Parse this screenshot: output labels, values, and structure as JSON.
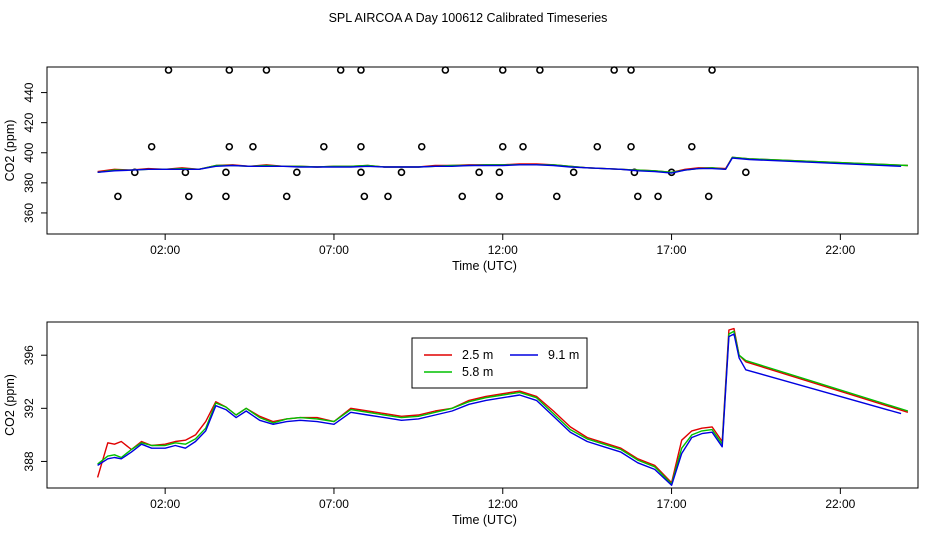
{
  "title": "SPL AIRCOA A  Day 100612  Calibrated Timeseries",
  "colors": {
    "red": "#e00000",
    "green": "#00c000",
    "blue": "#0000e0",
    "axis": "#000000"
  },
  "chart_data": [
    {
      "type": "scatter+line",
      "name": "top",
      "xlabel": "Time (UTC)",
      "ylabel": "CO2 (ppm)",
      "xlim": [
        -1.5,
        24.3
      ],
      "ylim": [
        346,
        457
      ],
      "xticks": [
        2,
        7,
        12,
        17,
        22
      ],
      "xtick_labels": [
        "02:00",
        "07:00",
        "12:00",
        "17:00",
        "22:00"
      ],
      "yticks": [
        360,
        380,
        400,
        420,
        440
      ],
      "ytick_labels": [
        "360",
        "380",
        "400",
        "420",
        "440"
      ],
      "points": [
        [
          2.1,
          455
        ],
        [
          3.9,
          455
        ],
        [
          5.0,
          455
        ],
        [
          7.2,
          455
        ],
        [
          7.8,
          455
        ],
        [
          10.3,
          455
        ],
        [
          12.0,
          455
        ],
        [
          13.1,
          455
        ],
        [
          15.3,
          455
        ],
        [
          15.8,
          455
        ],
        [
          18.2,
          455
        ],
        [
          1.6,
          404
        ],
        [
          3.9,
          404
        ],
        [
          4.6,
          404
        ],
        [
          6.7,
          404
        ],
        [
          7.8,
          404
        ],
        [
          9.6,
          404
        ],
        [
          12.0,
          404
        ],
        [
          12.6,
          404
        ],
        [
          14.8,
          404
        ],
        [
          15.8,
          404
        ],
        [
          17.6,
          404
        ],
        [
          1.1,
          387
        ],
        [
          2.6,
          387
        ],
        [
          3.8,
          387
        ],
        [
          5.9,
          387
        ],
        [
          7.8,
          387
        ],
        [
          9.0,
          387
        ],
        [
          11.3,
          387
        ],
        [
          11.9,
          387
        ],
        [
          14.1,
          387
        ],
        [
          15.9,
          387
        ],
        [
          17.0,
          387
        ],
        [
          19.2,
          387
        ],
        [
          0.6,
          371
        ],
        [
          2.7,
          371
        ],
        [
          3.8,
          371
        ],
        [
          5.6,
          371
        ],
        [
          7.9,
          371
        ],
        [
          8.6,
          371
        ],
        [
          10.8,
          371
        ],
        [
          11.9,
          371
        ],
        [
          13.6,
          371
        ],
        [
          16.0,
          371
        ],
        [
          16.6,
          371
        ],
        [
          18.1,
          371
        ]
      ],
      "series": [
        {
          "name": "2.5 m",
          "color": "red",
          "x": [
            0.0,
            0.5,
            1.0,
            1.5,
            2.0,
            2.5,
            3.0,
            3.5,
            4.0,
            4.5,
            5.0,
            5.5,
            6.0,
            6.5,
            7.0,
            7.5,
            8.0,
            8.5,
            9.0,
            9.5,
            10.0,
            10.5,
            11.0,
            11.5,
            12.0,
            12.5,
            13.0,
            13.5,
            14.0,
            14.5,
            15.0,
            15.5,
            16.0,
            16.5,
            17.0,
            17.4,
            17.8,
            18.2,
            18.6,
            18.8,
            19.3,
            24.0
          ],
          "values": [
            387.5,
            389.0,
            388.5,
            389.5,
            389.0,
            390.0,
            389.0,
            391.5,
            392.0,
            391.0,
            392.0,
            391.0,
            391.0,
            390.5,
            391.0,
            391.0,
            391.5,
            390.5,
            390.5,
            390.5,
            391.5,
            391.5,
            392.0,
            392.0,
            392.0,
            392.5,
            392.5,
            392.0,
            391.0,
            390.0,
            389.5,
            389.0,
            388.5,
            388.0,
            387.0,
            389.0,
            390.0,
            390.0,
            389.5,
            397.0,
            396.0,
            391.5
          ]
        },
        {
          "name": "5.8 m",
          "color": "green",
          "x": [
            0.0,
            0.5,
            1.0,
            1.5,
            2.0,
            2.5,
            3.0,
            3.5,
            4.0,
            4.5,
            5.0,
            5.5,
            6.0,
            6.5,
            7.0,
            7.5,
            8.0,
            8.5,
            9.0,
            9.5,
            10.0,
            10.5,
            11.0,
            11.5,
            12.0,
            12.5,
            13.0,
            13.5,
            14.0,
            14.5,
            15.0,
            15.5,
            16.0,
            16.5,
            17.0,
            17.4,
            17.8,
            18.2,
            18.6,
            18.8,
            19.3,
            24.0
          ],
          "values": [
            387.0,
            388.5,
            388.5,
            389.0,
            389.0,
            389.5,
            389.0,
            391.5,
            391.5,
            391.0,
            391.5,
            391.0,
            391.0,
            390.5,
            391.0,
            391.0,
            391.5,
            390.5,
            390.5,
            390.5,
            391.0,
            391.5,
            391.5,
            392.0,
            392.0,
            392.0,
            392.0,
            392.0,
            391.0,
            390.0,
            389.5,
            389.0,
            388.5,
            388.0,
            387.0,
            388.5,
            389.5,
            390.0,
            389.0,
            397.0,
            396.0,
            391.5
          ]
        },
        {
          "name": "9.1 m",
          "color": "blue",
          "x": [
            0.0,
            0.5,
            1.0,
            1.5,
            2.0,
            2.5,
            3.0,
            3.5,
            4.0,
            4.5,
            5.0,
            5.5,
            6.0,
            6.5,
            7.0,
            7.5,
            8.0,
            8.5,
            9.0,
            9.5,
            10.0,
            10.5,
            11.0,
            11.5,
            12.0,
            12.5,
            13.0,
            13.5,
            14.0,
            14.5,
            15.0,
            15.5,
            16.0,
            16.5,
            17.0,
            17.4,
            17.8,
            18.2,
            18.6,
            18.8,
            19.3,
            23.8
          ],
          "values": [
            387.0,
            388.0,
            388.5,
            389.0,
            389.0,
            389.0,
            389.0,
            391.0,
            391.5,
            391.0,
            391.0,
            391.0,
            390.5,
            390.5,
            390.5,
            390.5,
            391.0,
            390.5,
            390.5,
            390.5,
            391.0,
            391.0,
            391.5,
            391.5,
            391.5,
            392.0,
            392.0,
            391.5,
            390.5,
            390.0,
            389.5,
            389.0,
            388.0,
            387.5,
            386.5,
            388.5,
            389.5,
            389.5,
            389.0,
            396.5,
            395.5,
            391.0
          ]
        }
      ]
    },
    {
      "type": "line",
      "name": "bottom",
      "xlabel": "Time (UTC)",
      "ylabel": "CO2 (ppm)",
      "xlim": [
        -1.5,
        24.3
      ],
      "ylim": [
        386.0,
        398.5
      ],
      "xticks": [
        2,
        7,
        12,
        17,
        22
      ],
      "xtick_labels": [
        "02:00",
        "07:00",
        "12:00",
        "17:00",
        "22:00"
      ],
      "yticks": [
        388,
        392,
        396
      ],
      "ytick_labels": [
        "388",
        "392",
        "396"
      ],
      "legend": {
        "placement": "top-center",
        "entries": [
          "2.5 m",
          "9.1 m",
          "5.8 m"
        ]
      },
      "series": [
        {
          "name": "2.5 m",
          "color": "red",
          "x": [
            0.0,
            0.3,
            0.5,
            0.7,
            1.0,
            1.3,
            1.6,
            2.0,
            2.3,
            2.6,
            2.9,
            3.2,
            3.5,
            3.8,
            4.1,
            4.4,
            4.8,
            5.2,
            5.6,
            6.0,
            6.5,
            7.0,
            7.5,
            8.0,
            8.5,
            9.0,
            9.5,
            10.0,
            10.5,
            11.0,
            11.5,
            12.0,
            12.5,
            13.0,
            13.5,
            14.0,
            14.5,
            15.0,
            15.5,
            16.0,
            16.5,
            17.0,
            17.3,
            17.6,
            17.9,
            18.2,
            18.5,
            18.7,
            18.85,
            19.0,
            19.2,
            24.0
          ],
          "values": [
            386.8,
            389.4,
            389.3,
            389.5,
            388.9,
            389.5,
            389.2,
            389.3,
            389.5,
            389.6,
            390.0,
            391.0,
            392.5,
            392.1,
            391.5,
            392.0,
            391.4,
            391.0,
            391.2,
            391.3,
            391.3,
            391.0,
            392.0,
            391.8,
            391.6,
            391.4,
            391.5,
            391.8,
            392.0,
            392.6,
            392.9,
            393.1,
            393.3,
            392.9,
            391.8,
            390.6,
            389.8,
            389.4,
            389.0,
            388.2,
            387.7,
            386.4,
            389.6,
            390.3,
            390.5,
            390.6,
            389.5,
            397.9,
            398.0,
            396.0,
            395.5,
            391.7
          ]
        },
        {
          "name": "5.8 m",
          "color": "green",
          "x": [
            0.0,
            0.3,
            0.5,
            0.7,
            1.0,
            1.3,
            1.6,
            2.0,
            2.3,
            2.6,
            2.9,
            3.2,
            3.5,
            3.8,
            4.1,
            4.4,
            4.8,
            5.2,
            5.6,
            6.0,
            6.5,
            7.0,
            7.5,
            8.0,
            8.5,
            9.0,
            9.5,
            10.0,
            10.5,
            11.0,
            11.5,
            12.0,
            12.5,
            13.0,
            13.5,
            14.0,
            14.5,
            15.0,
            15.5,
            16.0,
            16.5,
            17.0,
            17.3,
            17.6,
            17.9,
            18.2,
            18.5,
            18.7,
            18.85,
            19.0,
            19.2,
            24.0
          ],
          "values": [
            387.8,
            388.4,
            388.5,
            388.3,
            388.9,
            389.4,
            389.2,
            389.2,
            389.4,
            389.3,
            389.7,
            390.5,
            392.4,
            392.1,
            391.5,
            392.0,
            391.3,
            390.9,
            391.2,
            391.3,
            391.2,
            391.0,
            391.9,
            391.7,
            391.5,
            391.3,
            391.4,
            391.7,
            392.0,
            392.5,
            392.8,
            393.0,
            393.2,
            392.8,
            391.6,
            390.4,
            389.7,
            389.3,
            388.9,
            388.1,
            387.6,
            386.3,
            389.0,
            390.0,
            390.3,
            390.4,
            389.3,
            397.6,
            397.8,
            396.0,
            395.6,
            391.8
          ]
        },
        {
          "name": "9.1 m",
          "color": "blue",
          "x": [
            0.0,
            0.3,
            0.5,
            0.7,
            1.0,
            1.3,
            1.6,
            2.0,
            2.3,
            2.6,
            2.9,
            3.2,
            3.5,
            3.8,
            4.1,
            4.4,
            4.8,
            5.2,
            5.6,
            6.0,
            6.5,
            7.0,
            7.5,
            8.0,
            8.5,
            9.0,
            9.5,
            10.0,
            10.5,
            11.0,
            11.5,
            12.0,
            12.5,
            13.0,
            13.5,
            14.0,
            14.5,
            15.0,
            15.5,
            16.0,
            16.5,
            17.0,
            17.3,
            17.6,
            17.9,
            18.2,
            18.5,
            18.7,
            18.85,
            19.0,
            19.2,
            23.8
          ],
          "values": [
            387.7,
            388.2,
            388.3,
            388.2,
            388.7,
            389.3,
            389.0,
            389.0,
            389.2,
            389.0,
            389.5,
            390.3,
            392.2,
            391.9,
            391.3,
            391.8,
            391.1,
            390.8,
            391.0,
            391.1,
            391.0,
            390.8,
            391.7,
            391.5,
            391.3,
            391.1,
            391.2,
            391.5,
            391.8,
            392.3,
            392.6,
            392.8,
            393.0,
            392.6,
            391.4,
            390.2,
            389.5,
            389.1,
            388.7,
            387.9,
            387.4,
            386.2,
            388.6,
            389.8,
            390.1,
            390.2,
            389.1,
            397.4,
            397.6,
            395.8,
            394.9,
            391.6
          ]
        }
      ]
    }
  ]
}
